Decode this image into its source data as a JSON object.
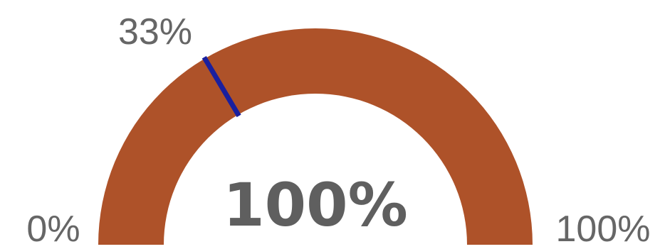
{
  "chart_data": {
    "type": "gauge",
    "min": 0,
    "max": 100,
    "value": 100,
    "target": 33,
    "labels": {
      "min": "0%",
      "max": "100%",
      "target": "33%",
      "value": "100%"
    },
    "colors": {
      "fill": "#AE5229",
      "target_marker": "#1A1F9E",
      "text": "#666666",
      "value_text": "#5F5F5F"
    }
  }
}
